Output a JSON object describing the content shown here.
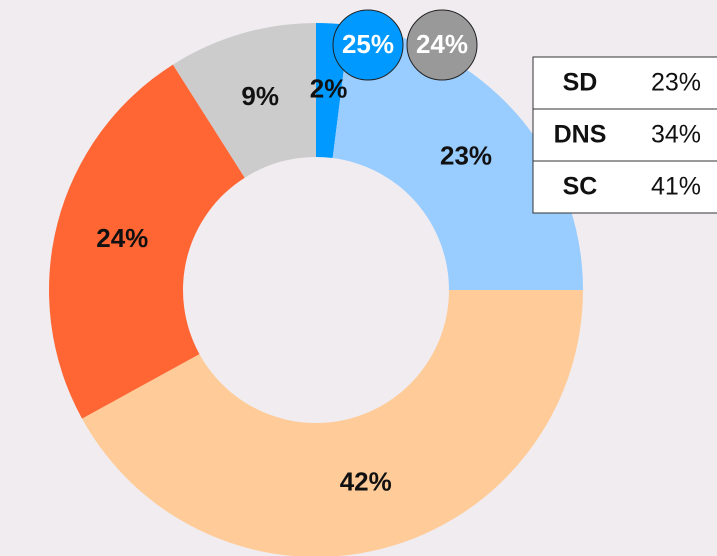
{
  "chart_data": {
    "type": "donut",
    "values": [
      2,
      23,
      42,
      24,
      9
    ],
    "value_labels": [
      "2%",
      "23%",
      "42%",
      "24%",
      "9%"
    ],
    "colors": [
      "#0099ff",
      "#99ccff",
      "#ffcc99",
      "#ff6633",
      "#cccccc"
    ]
  },
  "badges": [
    {
      "label": "25%",
      "color": "#0099ff"
    },
    {
      "label": "24%",
      "color": "#999999"
    }
  ],
  "table": {
    "rows": [
      [
        "SD",
        "23%"
      ],
      [
        "DNS",
        "34%"
      ],
      [
        "SC",
        "41%"
      ]
    ]
  }
}
